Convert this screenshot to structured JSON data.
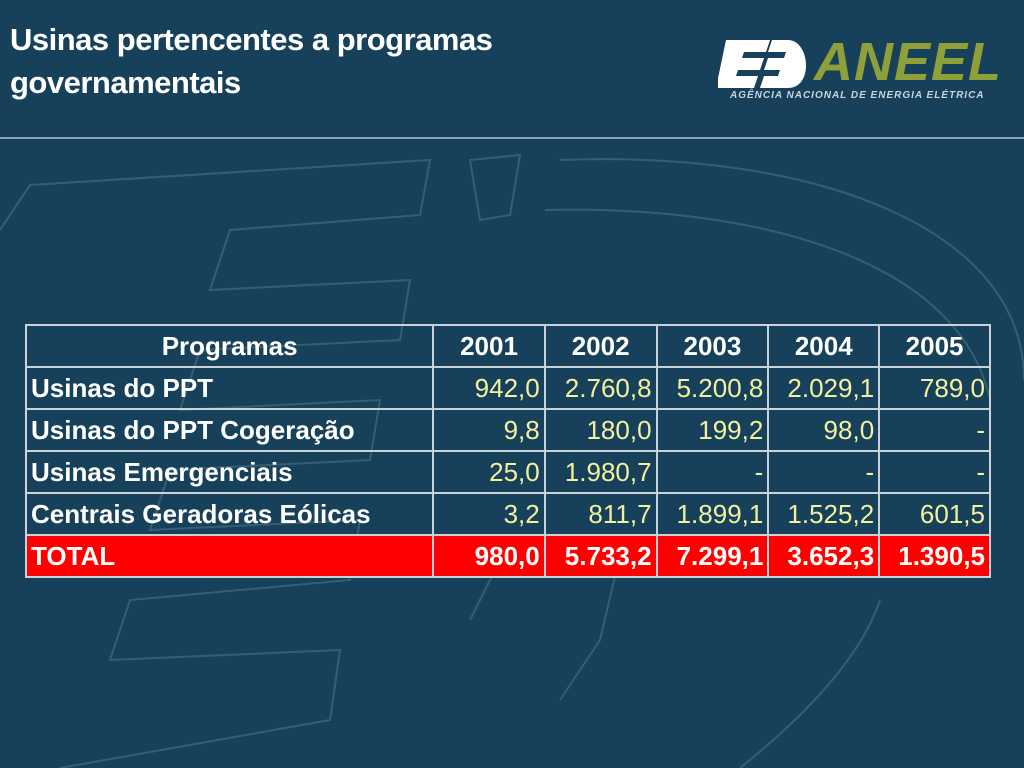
{
  "slide": {
    "title_line1": "Usinas pertencentes a programas",
    "title_line2": "governamentais"
  },
  "logo": {
    "wordmark": "ANEEL",
    "tagline": "AGÊNCIA NACIONAL DE ENERGIA ELÉTRICA",
    "icon": "aneel-ee-icon",
    "brand_color": "#8fa03a"
  },
  "colors": {
    "background": "#17415a",
    "value_text": "#f3f0a0",
    "total_row": "#ff0000"
  },
  "table": {
    "headers": [
      "Programas",
      "2001",
      "2002",
      "2003",
      "2004",
      "2005"
    ],
    "rows": [
      {
        "label": "Usinas do PPT",
        "values": [
          "942,0",
          "2.760,8",
          "5.200,8",
          "2.029,1",
          "789,0"
        ]
      },
      {
        "label": "Usinas do PPT Cogeração",
        "values": [
          "9,8",
          "180,0",
          "199,2",
          "98,0",
          "-"
        ]
      },
      {
        "label": "Usinas Emergenciais",
        "values": [
          "25,0",
          "1.980,7",
          "-",
          "-",
          "-"
        ]
      },
      {
        "label": "Centrais Geradoras Eólicas",
        "values": [
          "3,2",
          "811,7",
          "1.899,1",
          "1.525,2",
          "601,5"
        ]
      }
    ],
    "total": {
      "label": "TOTAL",
      "values": [
        "980,0",
        "5.733,2",
        "7.299,1",
        "3.652,3",
        "1.390,5"
      ]
    }
  }
}
